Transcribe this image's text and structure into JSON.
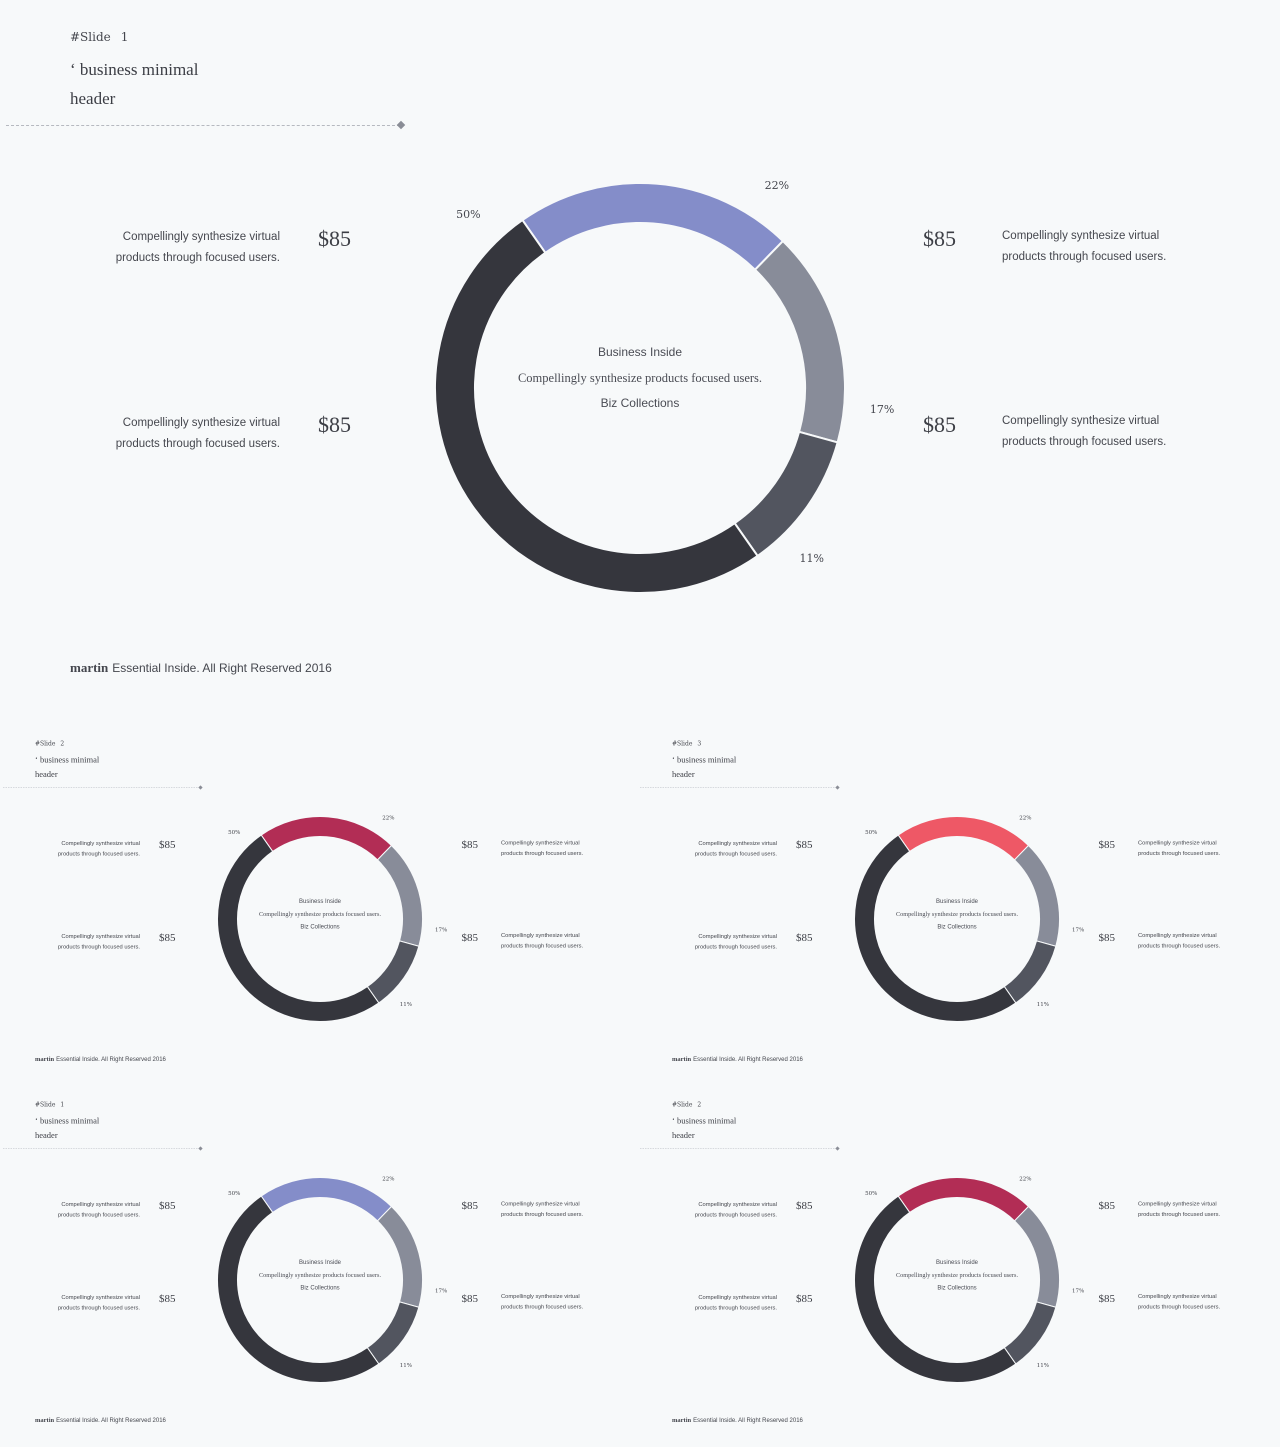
{
  "slides": [
    {
      "tag": "#Slide",
      "number": "1",
      "title_line1": "‘ business minimal",
      "title_line2": "header",
      "accent_color": "#848dc9",
      "center_title": "Business Inside",
      "center_subtitle": "Compellingly synthesize products focused users.",
      "center_caption": "Biz Collections",
      "info_text": "Compellingly synthesize virtual products through focused users.",
      "price": "$85",
      "footer_brand": "martin",
      "footer_text": "Essential Inside. All Right Reserved 2016"
    },
    {
      "tag": "#Slide",
      "number": "2",
      "title_line1": "‘ business minimal",
      "title_line2": "header",
      "accent_color": "#b22d55",
      "center_title": "Business Inside",
      "center_subtitle": "Compellingly synthesize products focused users.",
      "center_caption": "Biz Collections",
      "info_text": "Compellingly synthesize virtual products through focused users.",
      "price": "$85",
      "footer_brand": "martin",
      "footer_text": "Essential Inside. All Right Reserved 2016"
    },
    {
      "tag": "#Slide",
      "number": "3",
      "title_line1": "‘ business minimal",
      "title_line2": "header",
      "accent_color": "#ee5866",
      "center_title": "Business Inside",
      "center_subtitle": "Compellingly synthesize products focused users.",
      "center_caption": "Biz Collections",
      "info_text": "Compellingly synthesize virtual products through focused users.",
      "price": "$85",
      "footer_brand": "martin",
      "footer_text": "Essential Inside. All Right Reserved 2016"
    },
    {
      "tag": "#Slide",
      "number": "1",
      "title_line1": "‘ business minimal",
      "title_line2": "header",
      "accent_color": "#848dc9",
      "center_title": "Business Inside",
      "center_subtitle": "Compellingly synthesize products focused users.",
      "center_caption": "Biz Collections",
      "info_text": "Compellingly synthesize virtual products through focused users.",
      "price": "$85",
      "footer_brand": "martin",
      "footer_text": "Essential Inside. All Right Reserved 2016"
    },
    {
      "tag": "#Slide",
      "number": "2",
      "title_line1": "‘ business minimal",
      "title_line2": "header",
      "accent_color": "#b22d55",
      "center_title": "Business Inside",
      "center_subtitle": "Compellingly synthesize products focused users.",
      "center_caption": "Biz Collections",
      "info_text": "Compellingly synthesize virtual products through focused users.",
      "price": "$85",
      "footer_brand": "martin",
      "footer_text": "Essential Inside. All Right Reserved 2016"
    }
  ],
  "chart_data": {
    "type": "pie",
    "style": "donut",
    "categories": [
      "22%",
      "17%",
      "11%",
      "50%"
    ],
    "values": [
      22,
      17,
      11,
      50
    ],
    "slice_colors": [
      "accent",
      "#888c99",
      "#52555f",
      "#35363d"
    ],
    "title": "",
    "xlabel": "",
    "ylabel": "",
    "legend": "none"
  }
}
